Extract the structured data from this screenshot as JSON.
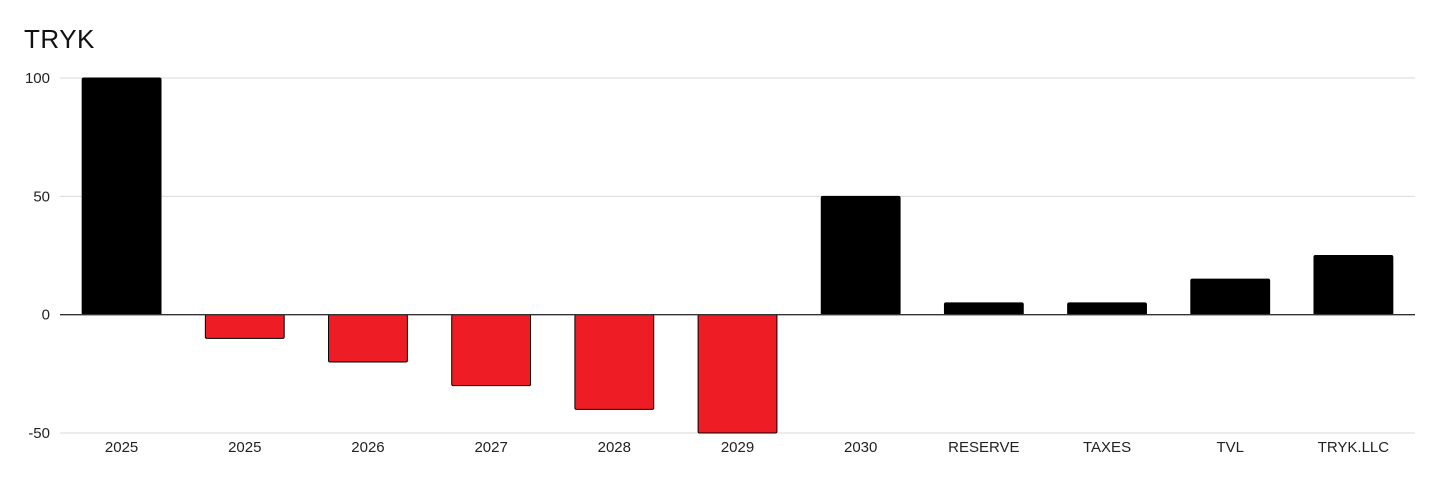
{
  "chart_data": {
    "type": "bar",
    "title": "TRYK",
    "categories": [
      "2025",
      "2025",
      "2026",
      "2027",
      "2028",
      "2029",
      "2030",
      "RESERVE",
      "TAXES",
      "TVL",
      "TRYK.LLC"
    ],
    "values": [
      100,
      -10,
      -20,
      -30,
      -40,
      -50,
      50,
      5,
      5,
      15,
      25
    ],
    "yticks": [
      100,
      50,
      0,
      -50
    ],
    "ylim": [
      -50,
      100
    ],
    "xlabel": "",
    "ylabel": "",
    "grid": true,
    "colors": {
      "positive": "#000000",
      "negative": "#ee1c25",
      "grid": "#d9d9d9",
      "baseline": "#333333"
    }
  }
}
